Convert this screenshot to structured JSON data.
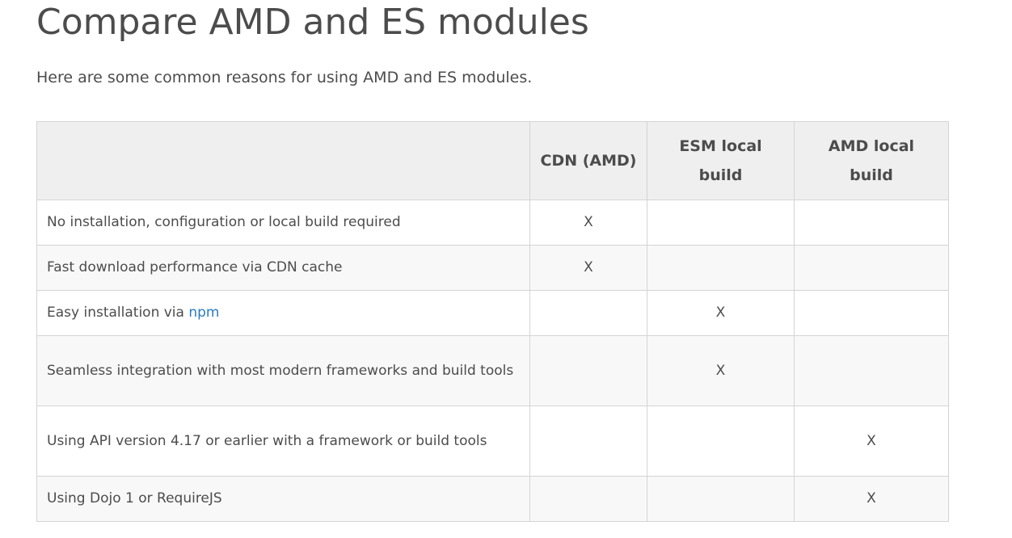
{
  "title": "Compare AMD and ES modules",
  "intro": "Here are some common reasons for using AMD and ES modules.",
  "table": {
    "columns": [
      "",
      "CDN (AMD)",
      "ESM local build",
      "AMD local build"
    ],
    "rows": [
      {
        "reason": "No installation, configuration or local build required",
        "cdn": "X",
        "esm": "",
        "amd": ""
      },
      {
        "reason": "Fast download performance via CDN cache",
        "cdn": "X",
        "esm": "",
        "amd": ""
      },
      {
        "reason_prefix": "Easy installation via ",
        "reason_link": "npm",
        "cdn": "",
        "esm": "X",
        "amd": ""
      },
      {
        "reason": "Seamless integration with most modern frameworks and build tools",
        "cdn": "",
        "esm": "X",
        "amd": ""
      },
      {
        "reason": "Using API version 4.17 or earlier with a framework or build tools",
        "cdn": "",
        "esm": "",
        "amd": "X"
      },
      {
        "reason": "Using Dojo 1 or RequireJS",
        "cdn": "",
        "esm": "",
        "amd": "X"
      }
    ]
  }
}
